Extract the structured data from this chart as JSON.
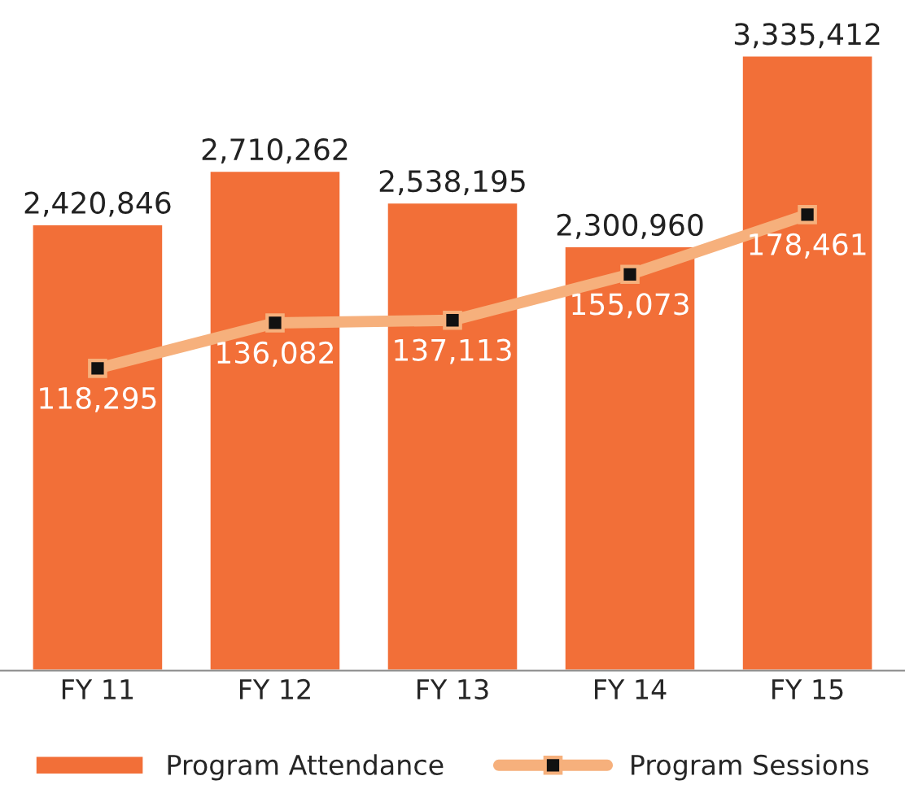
{
  "chart_data": {
    "type": "bar",
    "categories": [
      "FY 11",
      "FY 12",
      "FY 13",
      "FY 14",
      "FY 15"
    ],
    "series": [
      {
        "name": "Program Attendance",
        "color": "#f26f38",
        "values": [
          2420846,
          2710262,
          2538195,
          2300960,
          3335412
        ],
        "value_labels": [
          "2,420,846",
          "2,710,262",
          "2,538,195",
          "2,300,960",
          "3,335,412"
        ]
      },
      {
        "name": "Program Sessions",
        "type": "line",
        "axis": "y2",
        "color": "#f6b07c",
        "marker": "square",
        "values": [
          118295,
          136082,
          137113,
          155073,
          178461
        ],
        "value_labels": [
          "118,295",
          "136,082",
          "137,113",
          "155,073",
          "178,461"
        ]
      }
    ],
    "tick_labels": "x",
    "legend": "bottom"
  }
}
